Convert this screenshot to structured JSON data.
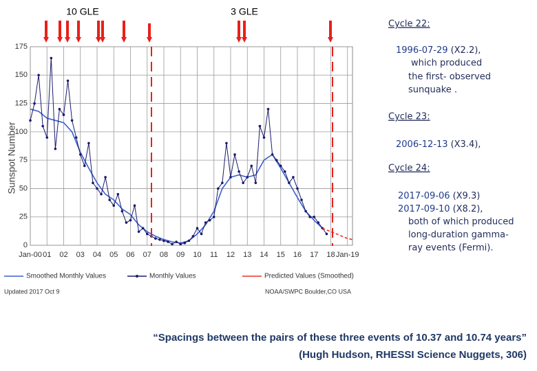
{
  "header": {
    "left_label": "10 GLE",
    "right_label": "3 GLE"
  },
  "chart_data": {
    "type": "line",
    "y_label": "Sunspot Number",
    "xlim": [
      2000,
      2019.3
    ],
    "xticks": [
      {
        "value": 2000,
        "label": "Jan-00"
      },
      {
        "value": 2001,
        "label": "01"
      },
      {
        "value": 2002,
        "label": "02"
      },
      {
        "value": 2003,
        "label": "03"
      },
      {
        "value": 2004,
        "label": "04"
      },
      {
        "value": 2005,
        "label": "05"
      },
      {
        "value": 2006,
        "label": "06"
      },
      {
        "value": 2007,
        "label": "07"
      },
      {
        "value": 2008,
        "label": "08"
      },
      {
        "value": 2009,
        "label": "09"
      },
      {
        "value": 2010,
        "label": "10"
      },
      {
        "value": 2011,
        "label": "11"
      },
      {
        "value": 2012,
        "label": "12"
      },
      {
        "value": 2013,
        "label": "13"
      },
      {
        "value": 2014,
        "label": "14"
      },
      {
        "value": 2015,
        "label": "15"
      },
      {
        "value": 2016,
        "label": "16"
      },
      {
        "value": 2017,
        "label": "17"
      },
      {
        "value": 2018,
        "label": "18"
      },
      {
        "value": 2019,
        "label": "Jan-19"
      }
    ],
    "ylim": [
      0,
      175
    ],
    "yticks": [
      0,
      25,
      50,
      75,
      100,
      125,
      150,
      175
    ],
    "grid": true,
    "series": [
      {
        "name": "Smoothed Monthly Values",
        "color": "#3a5fcd",
        "line_style": "solid",
        "markers": false,
        "x": [
          2000.0,
          2000.5,
          2001.0,
          2001.5,
          2002.0,
          2002.5,
          2003.0,
          2003.5,
          2004.0,
          2004.5,
          2005.0,
          2005.5,
          2006.0,
          2006.5,
          2007.0,
          2007.5,
          2008.0,
          2008.5,
          2009.0,
          2009.5,
          2010.0,
          2010.5,
          2011.0,
          2011.5,
          2012.0,
          2012.5,
          2013.0,
          2013.5,
          2014.0,
          2014.5,
          2015.0,
          2015.5,
          2016.0,
          2016.5,
          2017.0,
          2017.5
        ],
        "values": [
          120,
          118,
          112,
          110,
          108,
          100,
          82,
          68,
          55,
          45,
          40,
          32,
          27,
          18,
          12,
          8,
          5,
          3,
          2,
          4,
          10,
          18,
          30,
          50,
          60,
          62,
          60,
          62,
          75,
          80,
          68,
          55,
          42,
          30,
          22,
          15
        ]
      },
      {
        "name": "Monthly Values",
        "color": "#1a1a6e",
        "line_style": "solid",
        "markers": true,
        "x": [
          2000.0,
          2000.25,
          2000.5,
          2000.75,
          2001.0,
          2001.25,
          2001.5,
          2001.75,
          2002.0,
          2002.25,
          2002.5,
          2002.75,
          2003.0,
          2003.25,
          2003.5,
          2003.75,
          2004.0,
          2004.25,
          2004.5,
          2004.75,
          2005.0,
          2005.25,
          2005.5,
          2005.75,
          2006.0,
          2006.25,
          2006.5,
          2006.75,
          2007.0,
          2007.25,
          2007.5,
          2007.75,
          2008.0,
          2008.25,
          2008.5,
          2008.75,
          2009.0,
          2009.25,
          2009.5,
          2009.75,
          2010.0,
          2010.25,
          2010.5,
          2010.75,
          2011.0,
          2011.25,
          2011.5,
          2011.75,
          2012.0,
          2012.25,
          2012.5,
          2012.75,
          2013.0,
          2013.25,
          2013.5,
          2013.75,
          2014.0,
          2014.25,
          2014.5,
          2014.75,
          2015.0,
          2015.25,
          2015.5,
          2015.75,
          2016.0,
          2016.25,
          2016.5,
          2016.75,
          2017.0,
          2017.25,
          2017.5,
          2017.75
        ],
        "values": [
          110,
          125,
          150,
          105,
          95,
          165,
          85,
          120,
          115,
          145,
          110,
          95,
          80,
          70,
          90,
          55,
          50,
          45,
          60,
          40,
          35,
          45,
          30,
          20,
          22,
          35,
          12,
          15,
          10,
          8,
          6,
          5,
          4,
          3,
          1,
          3,
          1,
          2,
          4,
          8,
          15,
          10,
          20,
          22,
          25,
          50,
          55,
          90,
          60,
          80,
          65,
          55,
          60,
          70,
          55,
          105,
          95,
          120,
          80,
          75,
          70,
          65,
          55,
          60,
          50,
          40,
          30,
          25,
          25,
          20,
          15,
          10
        ]
      },
      {
        "name": "Predicted Values (Smoothed)",
        "color": "#e8302a",
        "line_style": "dashed",
        "markers": false,
        "x": [
          2017.5,
          2018.0,
          2018.5,
          2019.0,
          2019.3
        ],
        "values": [
          15,
          12,
          9,
          6,
          5
        ]
      }
    ],
    "updated_note": "Updated 2017 Oct 9",
    "credit": "NOAA/SWPC Boulder,CO USA"
  },
  "notes": [
    {
      "heading": "Cycle 22:",
      "entries": [
        {
          "date": "1996-07-29",
          "detail": "(X2.2),"
        }
      ],
      "description": [
        "which produced",
        "the first- observed",
        "sunquake ."
      ]
    },
    {
      "heading": "Cycle 23:",
      "entries": [
        {
          "date": "2006-12-13",
          "detail": "(X3.4),"
        }
      ],
      "description": []
    },
    {
      "heading": "Cycle 24:",
      "entries": [
        {
          "date": "2017-09-06",
          "detail": "(X9.3)"
        },
        {
          "date": "2017-09-10",
          "detail": "(X8.2),"
        }
      ],
      "description": [
        "both of which produced",
        "long-duration gamma-",
        "ray events (Fermi)."
      ]
    }
  ],
  "quote": {
    "text": "“Spacings between the pairs of these three events of  10.37 and 10.74 years”",
    "source": "(Hugh Hudson, RHESSI Science Nuggets, 306)"
  }
}
